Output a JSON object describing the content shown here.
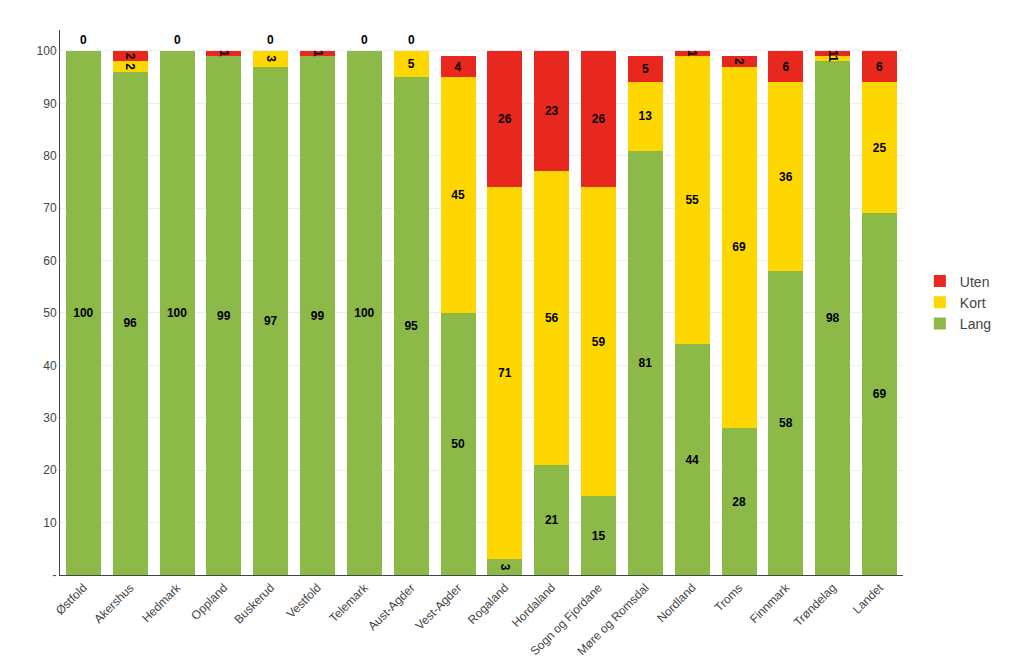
{
  "chart_data": {
    "type": "bar",
    "stacked": true,
    "categories": [
      "Østfold",
      "Akershus",
      "Hedmark",
      "Oppland",
      "Buskerud",
      "Vestfold",
      "Telemark",
      "Aust-Agder",
      "Vest-Agder",
      "Rogaland",
      "Hordaland",
      "Sogn og Fjordane",
      "Møre og Romsdal",
      "Nordland",
      "Troms",
      "Finnmark",
      "Trøndelag",
      "Landet"
    ],
    "series": [
      {
        "name": "Lang",
        "color": "#8DB948",
        "values": [
          100,
          96,
          100,
          99,
          97,
          99,
          100,
          95,
          50,
          3,
          21,
          15,
          81,
          44,
          28,
          58,
          98,
          69
        ],
        "value_labels": [
          "100",
          "96",
          "100",
          "99",
          "97",
          "99",
          "100",
          "95",
          "50",
          "3",
          "21",
          "15",
          "81",
          "44",
          "28",
          "58",
          "98",
          "69"
        ]
      },
      {
        "name": "Kort",
        "color": "#FFD700",
        "values": [
          0,
          2,
          0,
          0,
          3,
          0,
          0,
          5,
          45,
          71,
          56,
          59,
          13,
          55,
          69,
          36,
          1,
          25
        ],
        "value_labels": [
          null,
          "2",
          null,
          null,
          "3",
          null,
          null,
          "5",
          "45",
          "71",
          "56",
          "59",
          "13",
          "55",
          "69",
          "36",
          "1",
          "25"
        ]
      },
      {
        "name": "Uten",
        "color": "#E8281E",
        "values": [
          0,
          2,
          0,
          1,
          0,
          1,
          0,
          0,
          4,
          26,
          23,
          26,
          5,
          1,
          2,
          6,
          1,
          6
        ],
        "value_labels": [
          "0",
          "2",
          "0",
          "1",
          "0",
          "1",
          "0",
          "0",
          "4",
          "26",
          "23",
          "26",
          "5",
          "1",
          "2",
          "6",
          "1",
          "6"
        ]
      }
    ],
    "ylim": [
      0,
      104
    ],
    "yticks": [
      {
        "value": 0,
        "label": "-"
      },
      10,
      20,
      30,
      40,
      50,
      60,
      70,
      80,
      90,
      100
    ],
    "grid": true,
    "legend": "right",
    "data_labels": true
  }
}
